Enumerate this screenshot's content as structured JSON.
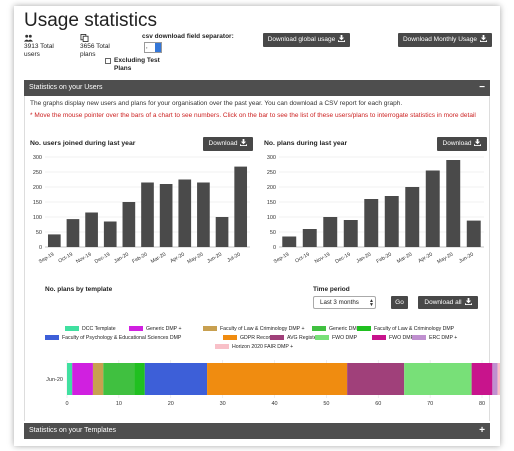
{
  "page": {
    "title": "Usage statistics",
    "users_total": "3913 Total users",
    "plans_total": "3656 Total plans",
    "excluding_label": "Excluding Test Plans",
    "csv_label": "csv download field separator:",
    "csv_value": ",",
    "download_global_label": "Download global usage",
    "download_monthly_label": "Download Monthly Usage",
    "icons": {
      "users": "users-icon",
      "plans": "copy-icon",
      "download": "download-icon"
    }
  },
  "users_section": {
    "header": "Statistics on your Users",
    "toggle": "−",
    "intro": "The graphs display new users and plans for your organisation over the past year. You can download a CSV report for each graph.",
    "note": "* Move the mouse pointer over the bars of a chart to see numbers. Click on the bar to see the list of these users/plans to interrogate statistics in more detail",
    "download_label": "Download"
  },
  "template_controls": {
    "title": "No. plans by template",
    "time_period_label": "Time period",
    "time_period_value": "Last 3 months",
    "go_label": "Go",
    "download_all_label": "Download all"
  },
  "templates_section": {
    "header": "Statistics on your Templates",
    "toggle": "+"
  },
  "colors": {
    "bar": "#4a4a4a",
    "header_bg": "#4e4e4e"
  },
  "chart_data": [
    {
      "type": "bar",
      "title": "No. users joined during last year",
      "categories": [
        "Sep-19",
        "Oct-19",
        "Nov-19",
        "Dec-19",
        "Jan-20",
        "Feb-20",
        "Mar-20",
        "Apr-20",
        "May-20",
        "Jun-20",
        "Jul-20"
      ],
      "values": [
        42,
        93,
        115,
        85,
        150,
        215,
        210,
        225,
        215,
        100,
        268
      ],
      "ylim": [
        0,
        300
      ],
      "yticks": [
        "0",
        "50",
        "100",
        "150",
        "200",
        "250",
        "300"
      ],
      "grid": true
    },
    {
      "type": "bar",
      "title": "No. plans during last year",
      "categories": [
        "Sep-19",
        "Oct-19",
        "Nov-19",
        "Dec-19",
        "Jan-20",
        "Feb-20",
        "Mar-20",
        "Apr-20",
        "May-20",
        "Jun-20"
      ],
      "values": [
        35,
        60,
        100,
        90,
        160,
        170,
        200,
        255,
        290,
        88
      ],
      "ylim": [
        0,
        300
      ],
      "yticks": [
        "0",
        "50",
        "100",
        "150",
        "200",
        "250",
        "300"
      ],
      "grid": true
    },
    {
      "type": "bar",
      "orientation": "horizontal-stacked",
      "categories": [
        "Jun-20"
      ],
      "xlim": [
        0,
        80
      ],
      "xticks": [
        "0",
        "10",
        "20",
        "30",
        "40",
        "50",
        "60",
        "70",
        "80"
      ],
      "legend_position": "top",
      "series": [
        {
          "name": "DCC Template",
          "color": "#40e0a0",
          "value": 1
        },
        {
          "name": "Generic DMP +",
          "color": "#d020e0",
          "value": 4
        },
        {
          "name": "Faculty of Law & Criminology DMP +",
          "color": "#c8a050",
          "value": 2
        },
        {
          "name": "Generic DMP",
          "color": "#40c040",
          "value": 6
        },
        {
          "name": "Faculty of Law & Criminology DMP",
          "color": "#20c020",
          "value": 2
        },
        {
          "name": "Faculty of Psychology & Educational Sciences DMP",
          "color": "#3d5fd8",
          "value": 12
        },
        {
          "name": "GDPR Record",
          "color": "#f08c10",
          "value": 27
        },
        {
          "name": "AVG Register",
          "color": "#a0407a",
          "value": 11
        },
        {
          "name": "FWO DMP",
          "color": "#78e078",
          "value": 13
        },
        {
          "name": "FWO DMP +",
          "color": "#c8148c",
          "value": 4
        },
        {
          "name": "ERC DMP +",
          "color": "#c090d0",
          "value": 1
        },
        {
          "name": "Horizon 2020 FAIR DMP +",
          "color": "#f8c0c8",
          "value": 1
        }
      ]
    }
  ]
}
